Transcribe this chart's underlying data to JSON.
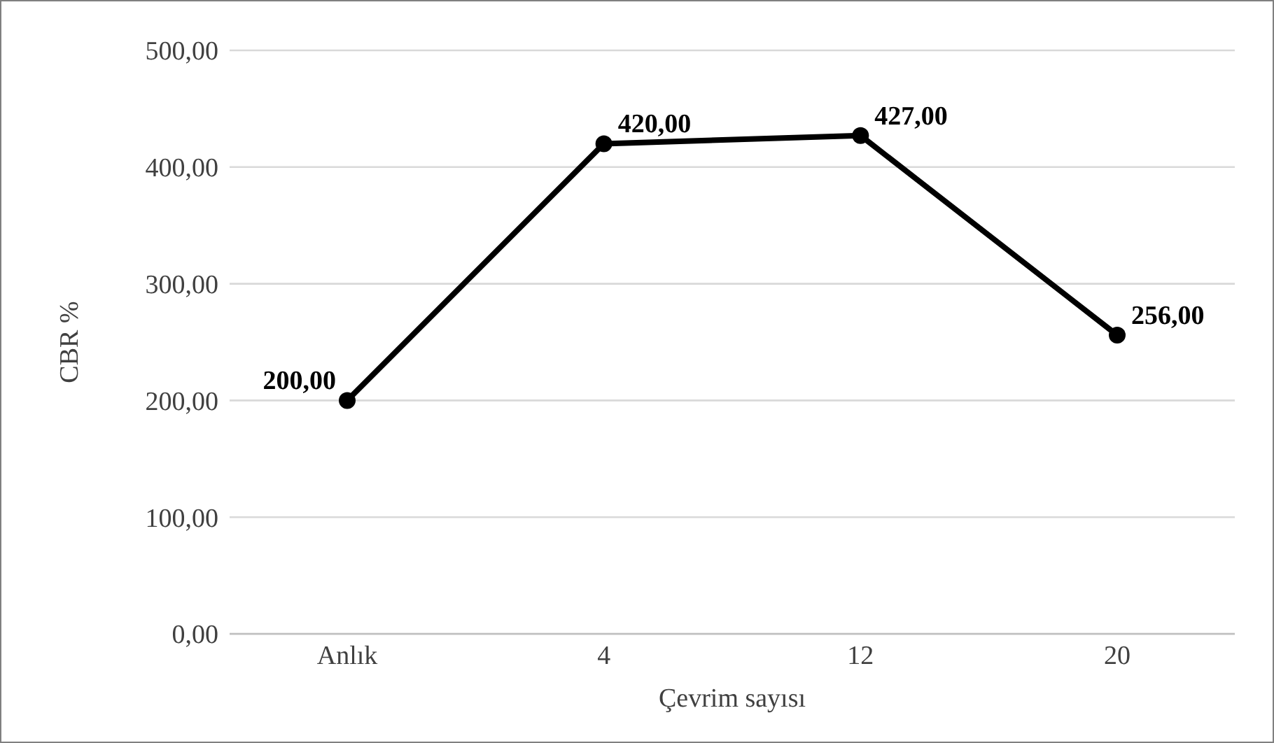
{
  "chart_data": {
    "type": "line",
    "xlabel": "Çevrim sayısı",
    "ylabel": "CBR %",
    "categories": [
      "Anlık",
      "4",
      "12",
      "20"
    ],
    "series": [
      {
        "color": "#000000",
        "values": [
          200,
          420,
          427,
          256
        ],
        "value_labels": [
          "200,00",
          "420,00",
          "427,00",
          "256,00"
        ]
      }
    ],
    "ylim": [
      0,
      500
    ],
    "yticks": [
      {
        "value": 0,
        "label": "0,00"
      },
      {
        "value": 100,
        "label": "100,00"
      },
      {
        "value": 200,
        "label": "200,00"
      },
      {
        "value": 300,
        "label": "300,00"
      },
      {
        "value": 400,
        "label": "400,00"
      },
      {
        "value": 500,
        "label": "500,00"
      }
    ],
    "grid": "y",
    "marker": "circle",
    "line_style": "solid"
  }
}
